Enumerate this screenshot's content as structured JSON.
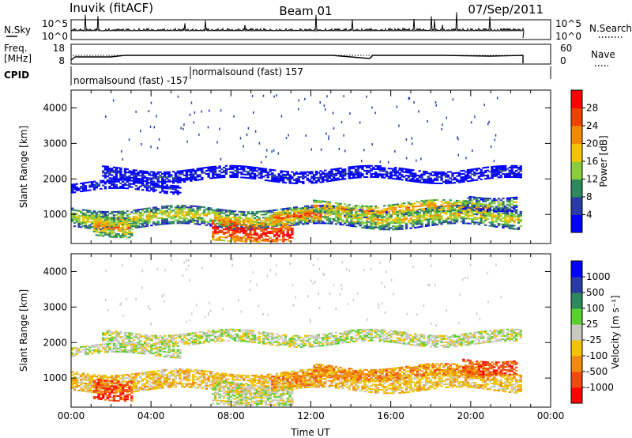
{
  "header": {
    "station": "Inuvik (fitACF)",
    "beam": "Beam 01",
    "date": "07/Sep/2011"
  },
  "panels": {
    "nsky": {
      "left_label": "N.Sky",
      "right_label": "N.Search",
      "left_ticks": [
        "10^5",
        "10^0"
      ],
      "right_ticks": [
        "10^5",
        "10^0"
      ]
    },
    "freq": {
      "left_label_line1": "Freq.",
      "left_label_line2": "[MHz]",
      "right_label": "Nave",
      "left_ticks": [
        "18",
        "8"
      ],
      "right_ticks": [
        "60",
        "0"
      ]
    },
    "cpid": {
      "label": "CPID",
      "segments": [
        "normalsound (fast) -157",
        "normalsound (fast) 157"
      ]
    }
  },
  "colors": {
    "power_scale": [
      "#0000ff",
      "#2a3aa6",
      "#2e8a5c",
      "#8ccc3c",
      "#f4c400",
      "#f08a00",
      "#f04000",
      "#ff0000"
    ],
    "velocity_scale": [
      "#ff0000",
      "#f04a10",
      "#f08a10",
      "#f0c400",
      "#c8c8c0",
      "#5ad030",
      "#2e8a5c",
      "#2a3aa6",
      "#0000ff"
    ]
  },
  "chart_data": [
    {
      "type": "heatmap",
      "title": "Power",
      "ylabel": "Slant Range [km]",
      "ylim": [
        180,
        4500
      ],
      "yticks": [
        "1000",
        "2000",
        "3000",
        "4000"
      ],
      "x": [
        "00:00",
        "04:00",
        "08:00",
        "12:00",
        "16:00",
        "20:00",
        "00:00"
      ],
      "colorbar": {
        "label": "Power [dB]",
        "ticks": [
          "4",
          "8",
          "12",
          "16",
          "20",
          "24",
          "28"
        ],
        "range": [
          0,
          32
        ]
      }
    },
    {
      "type": "heatmap",
      "title": "Velocity",
      "ylabel": "Slant Range [km]",
      "xlabel": "Time UT",
      "ylim": [
        180,
        4500
      ],
      "yticks": [
        "1000",
        "2000",
        "3000",
        "4000"
      ],
      "x": [
        "00:00",
        "04:00",
        "08:00",
        "12:00",
        "16:00",
        "20:00",
        "00:00"
      ],
      "colorbar": {
        "label": "Velocity [m s⁻¹]",
        "ticks": [
          "1000",
          "500",
          "100",
          "25",
          "-25",
          "-100",
          "-500",
          "-1000"
        ]
      }
    }
  ]
}
